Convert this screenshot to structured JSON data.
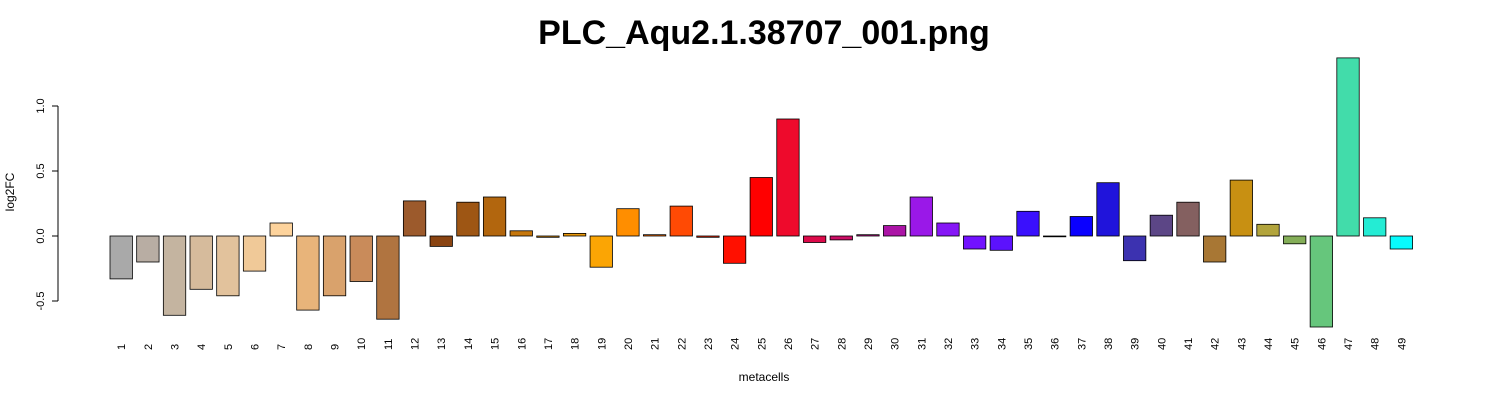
{
  "chart_data": {
    "type": "bar",
    "title": "PLC_Aqu2.1.38707_001.png",
    "xlabel": "metacells",
    "ylabel": "log2FC",
    "ylim": [
      -0.78,
      1.38
    ],
    "yticks": [
      -0.5,
      0.0,
      0.5,
      1.0
    ],
    "ytick_labels": [
      "-0.5",
      "0.0",
      "0.5",
      "1.0"
    ],
    "grid": false,
    "categories": [
      "1",
      "2",
      "3",
      "4",
      "5",
      "6",
      "7",
      "8",
      "9",
      "10",
      "11",
      "12",
      "13",
      "14",
      "15",
      "16",
      "17",
      "18",
      "19",
      "20",
      "21",
      "22",
      "23",
      "24",
      "25",
      "26",
      "27",
      "28",
      "29",
      "30",
      "31",
      "32",
      "33",
      "34",
      "35",
      "36",
      "37",
      "38",
      "39",
      "40",
      "41",
      "42",
      "43",
      "44",
      "45",
      "46",
      "47",
      "48",
      "49"
    ],
    "values": [
      -0.33,
      -0.2,
      -0.61,
      -0.41,
      -0.46,
      -0.27,
      0.1,
      -0.57,
      -0.46,
      -0.35,
      -0.64,
      0.27,
      -0.08,
      0.26,
      0.3,
      0.04,
      -0.01,
      0.02,
      -0.24,
      0.21,
      0.01,
      0.23,
      -0.01,
      -0.21,
      0.45,
      0.9,
      -0.05,
      -0.03,
      0.01,
      0.08,
      0.3,
      0.1,
      -0.1,
      -0.11,
      0.19,
      -0.005,
      0.15,
      0.41,
      -0.19,
      0.16,
      0.26,
      -0.2,
      0.43,
      0.09,
      -0.06,
      -0.7,
      1.37,
      0.14,
      -0.1
    ],
    "colors": [
      "#a9a9a9",
      "#b8ada3",
      "#c4b4a0",
      "#d6bb9c",
      "#e2c29c",
      "#f0c998",
      "#fdd39c",
      "#e8b47a",
      "#d9a26c",
      "#c98b5a",
      "#b07440",
      "#9c5a2c",
      "#8a4412",
      "#9e5614",
      "#b2660e",
      "#c6770c",
      "#d98808",
      "#ea980a",
      "#fba504",
      "#ff8e00",
      "#ff6c00",
      "#ff4a04",
      "#ff2600",
      "#ff1000",
      "#ff0000",
      "#ee0a2c",
      "#dc0a4a",
      "#cc0e66",
      "#bb1286",
      "#ab14a6",
      "#9a18e8",
      "#8616f6",
      "#7212ff",
      "#5c12fd",
      "#3a10fd",
      "#1c00fd",
      "#0a00ff",
      "#2014db",
      "#3c32b0",
      "#5c4686",
      "#846060",
      "#a87734",
      "#c89012",
      "#b2a43c",
      "#84ae58",
      "#66c67c",
      "#42dcaa",
      "#24ecd4",
      "#08fbfd"
    ]
  }
}
